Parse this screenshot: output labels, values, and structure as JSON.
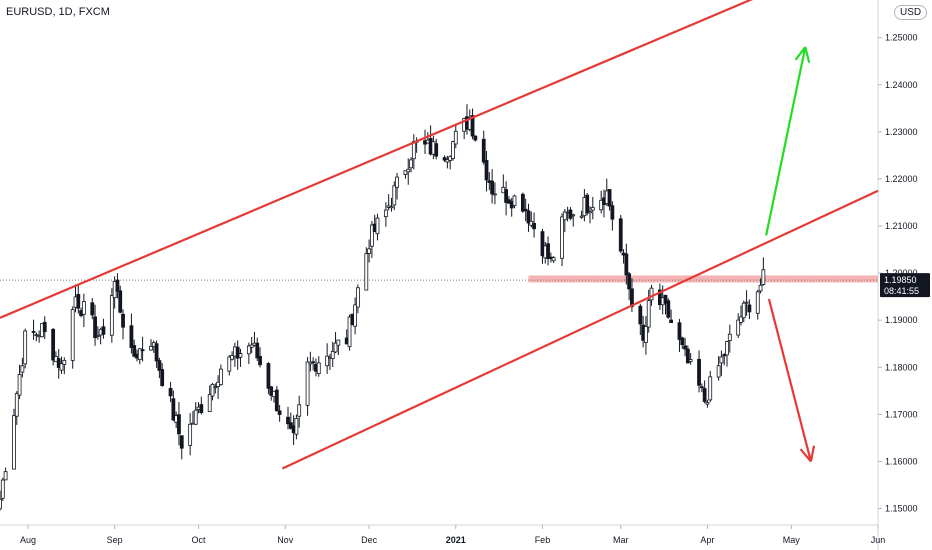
{
  "header": {
    "symbol": "EURUSD, 1D, FXCM",
    "currency": "USD"
  },
  "price_tag": {
    "price": "1.19850",
    "countdown": "08:41:55"
  },
  "colors": {
    "channel": "#e53935",
    "up_arrow": "#22dd22",
    "down_arrow": "#e53935",
    "candle_up": "#ffffff",
    "candle_down": "#131722",
    "zone": "#f4a6a6"
  },
  "chart_data": {
    "type": "candlestick",
    "title": "EURUSD, 1D, FXCM",
    "y_axis": {
      "ticks": [
        1.15,
        1.16,
        1.17,
        1.18,
        1.19,
        1.2,
        1.21,
        1.22,
        1.23,
        1.24,
        1.25
      ],
      "tick_labels": [
        "1.15000",
        "1.16000",
        "1.17000",
        "1.18000",
        "1.19000",
        "1.20000",
        "1.21000",
        "1.22000",
        "1.23000",
        "1.24000",
        "1.25000"
      ],
      "ylim": [
        1.1465,
        1.258
      ]
    },
    "x_axis": {
      "labels": [
        "Aug",
        "Sep",
        "Oct",
        "Nov",
        "Dec",
        "2021",
        "Feb",
        "Mar",
        "Apr",
        "May",
        "Jun"
      ],
      "label_dates": [
        "2020-08-01",
        "2020-09-01",
        "2020-10-01",
        "2020-11-01",
        "2020-12-01",
        "2021-01-01",
        "2021-02-01",
        "2021-03-01",
        "2021-04-01",
        "2021-05-01",
        "2021-06-01"
      ],
      "xlim": [
        "2020-07-22",
        "2021-06-01"
      ]
    },
    "series": [
      {
        "anchors": [
          [
            "2020-07-22",
            1.152
          ],
          [
            "2020-07-31",
            1.186
          ],
          [
            "2020-08-06",
            1.188
          ],
          [
            "2020-08-13",
            1.18
          ],
          [
            "2020-08-18",
            1.195
          ],
          [
            "2020-08-27",
            1.186
          ],
          [
            "2020-09-01",
            1.198
          ],
          [
            "2020-09-07",
            1.182
          ],
          [
            "2020-09-14",
            1.186
          ],
          [
            "2020-09-25",
            1.164
          ],
          [
            "2020-10-09",
            1.18
          ],
          [
            "2020-10-20",
            1.185
          ],
          [
            "2020-11-04",
            1.164
          ],
          [
            "2020-11-09",
            1.18
          ],
          [
            "2020-11-23",
            1.186
          ],
          [
            "2020-12-01",
            1.207
          ],
          [
            "2020-12-07",
            1.213
          ],
          [
            "2020-12-17",
            1.227
          ],
          [
            "2020-12-29",
            1.226
          ],
          [
            "2021-01-06",
            1.233
          ],
          [
            "2021-01-14",
            1.218
          ],
          [
            "2021-01-25",
            1.215
          ],
          [
            "2021-02-04",
            1.202
          ],
          [
            "2021-02-09",
            1.212
          ],
          [
            "2021-02-24",
            1.217
          ],
          [
            "2021-03-04",
            1.197
          ],
          [
            "2021-03-09",
            1.185
          ],
          [
            "2021-03-12",
            1.196
          ],
          [
            "2021-03-18",
            1.191
          ],
          [
            "2021-03-24",
            1.182
          ],
          [
            "2021-03-31",
            1.173
          ],
          [
            "2021-04-12",
            1.19
          ],
          [
            "2021-04-21",
            1.1985
          ]
        ]
      }
    ],
    "annotations": {
      "channel_upper": {
        "from": [
          "2020-07-22",
          1.1905
        ],
        "to": [
          "2021-06-01",
          1.2695
        ]
      },
      "channel_lower": {
        "from": [
          "2020-10-31",
          1.1585
        ],
        "to": [
          "2021-06-01",
          1.2175
        ]
      },
      "resistance_zone": {
        "from_date": "2021-01-27",
        "to_date": "2021-06-01",
        "low": 1.198,
        "high": 1.1995
      },
      "current_price_line": 1.1985,
      "arrow_up": {
        "from": [
          "2021-04-22",
          1.208
        ],
        "to": [
          "2021-05-06",
          1.248
        ]
      },
      "arrow_down": {
        "from": [
          "2021-04-23",
          1.1945
        ],
        "to": [
          "2021-05-08",
          1.16
        ]
      }
    }
  }
}
